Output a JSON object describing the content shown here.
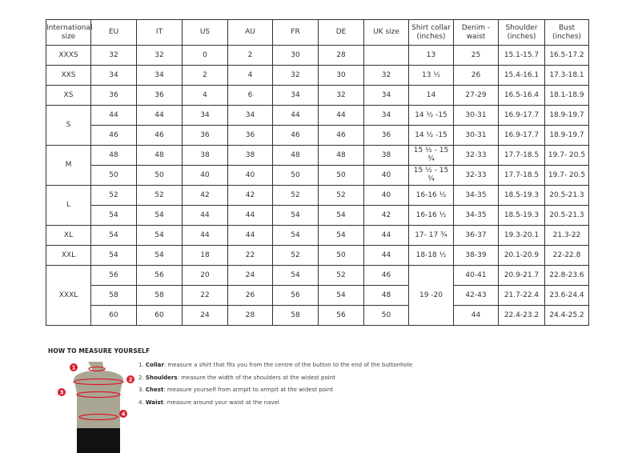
{
  "table": {
    "headers": [
      "International size",
      "EU",
      "IT",
      "US",
      "AU",
      "FR",
      "DE",
      "UK size",
      "Shirt collar (inches)",
      "Denim - waist",
      "Shoulder (inches)",
      "Bust (inches)"
    ],
    "groups": [
      {
        "size": "XXXS",
        "rows": [
          [
            "32",
            "32",
            "0",
            "2",
            "30",
            "28",
            "",
            "13",
            "25",
            "15.1-15.7",
            "16.5-17.2"
          ]
        ]
      },
      {
        "size": "XXS",
        "rows": [
          [
            "34",
            "34",
            "2",
            "4",
            "32",
            "30",
            "32",
            "13 ½",
            "26",
            "15.4-16.1",
            "17.3-18.1"
          ]
        ]
      },
      {
        "size": "XS",
        "rows": [
          [
            "36",
            "36",
            "4",
            "6",
            "34",
            "32",
            "34",
            "14",
            "27-29",
            "16.5-16.4",
            "18.1-18.9"
          ]
        ]
      },
      {
        "size": "S",
        "rows": [
          [
            "44",
            "44",
            "34",
            "34",
            "44",
            "44",
            "34",
            "14 ½ -15",
            "30-31",
            "16.9-17.7",
            "18.9-19.7"
          ],
          [
            "46",
            "46",
            "36",
            "36",
            "46",
            "46",
            "36",
            "14 ½ -15",
            "30-31",
            "16.9-17.7",
            "18.9-19.7"
          ]
        ]
      },
      {
        "size": "M",
        "rows": [
          [
            "48",
            "48",
            "38",
            "38",
            "48",
            "48",
            "38",
            "15 ½ - 15 ¾",
            "32-33",
            "17.7-18.5",
            "19.7- 20.5"
          ],
          [
            "50",
            "50",
            "40",
            "40",
            "50",
            "50",
            "40",
            "15 ½ - 15 ¾",
            "32-33",
            "17.7-18.5",
            "19.7- 20.5"
          ]
        ]
      },
      {
        "size": "L",
        "rows": [
          [
            "52",
            "52",
            "42",
            "42",
            "52",
            "52",
            "40",
            "16-16 ½",
            "34-35",
            "18.5-19.3",
            "20.5-21.3"
          ],
          [
            "54",
            "54",
            "44",
            "44",
            "54",
            "54",
            "42",
            "16-16 ½",
            "34-35",
            "18.5-19.3",
            "20.5-21.3"
          ]
        ]
      },
      {
        "size": "XL",
        "rows": [
          [
            "54",
            "54",
            "44",
            "44",
            "54",
            "54",
            "44",
            "17- 17 ¾",
            "36-37",
            "19.3-20.1",
            "21.3-22"
          ]
        ]
      },
      {
        "size": "XXL",
        "rows": [
          [
            "54",
            "54",
            "18",
            "22",
            "52",
            "50",
            "44",
            "18-18 ½",
            "38-39",
            "20.1-20.9",
            "22-22.8"
          ]
        ]
      },
      {
        "size": "XXXL",
        "collar_merged": "19 -20",
        "rows": [
          [
            "56",
            "56",
            "20",
            "24",
            "54",
            "52",
            "46",
            null,
            "40-41",
            "20.9-21.7",
            "22.8-23.6"
          ],
          [
            "58",
            "58",
            "22",
            "26",
            "56",
            "54",
            "48",
            null,
            "42-43",
            "21.7-22.4",
            "23.6-24.4"
          ],
          [
            "60",
            "60",
            "24",
            "28",
            "58",
            "56",
            "50",
            null,
            "44",
            "22.4-23.2",
            "24.4-25.2"
          ]
        ]
      }
    ]
  },
  "guide": {
    "title": "HOW TO MEASURE YOURSELF",
    "steps": [
      {
        "num": "1.",
        "term": "Collar",
        "text": ": measure a shirt that fits you from the centre of the button to the end of the buttonhole"
      },
      {
        "num": "2.",
        "term": "Shoulders",
        "text": ": measure the width of the shoulders at the widest point"
      },
      {
        "num": "3.",
        "term": "Chest",
        "text": ": measure yourself from armpit to armpit at the widest point"
      },
      {
        "num": "4.",
        "term": "Waist",
        "text": ": measure around your waist at the navel"
      }
    ],
    "markers": [
      "1",
      "2",
      "3",
      "4"
    ],
    "colors": {
      "marker": "#d81e2c",
      "torso": "#a9a794",
      "shorts": "#111111"
    }
  }
}
